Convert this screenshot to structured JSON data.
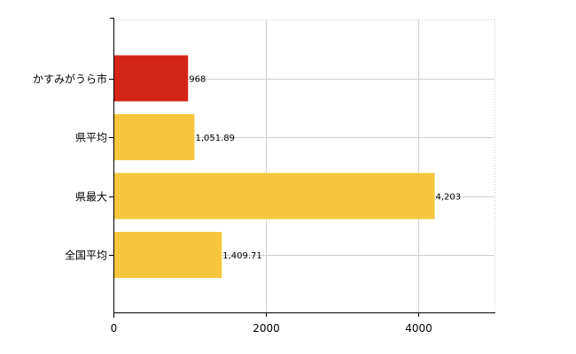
{
  "chart_data": {
    "type": "bar",
    "orientation": "horizontal",
    "categories": [
      "かすみがうら市",
      "県平均",
      "県最大",
      "全国平均"
    ],
    "values": [
      968,
      1051.89,
      4203,
      1409.71
    ],
    "value_labels": [
      "968",
      "1,051.89",
      "4,203",
      "1,409.71"
    ],
    "bar_colors": [
      "#d42416",
      "#f8c63c",
      "#f8c63c",
      "#f8c63c"
    ],
    "xlim": [
      0,
      5000
    ],
    "x_ticks": [
      0,
      2000,
      4000
    ],
    "x_tick_labels": [
      "0",
      "2000",
      "4000"
    ],
    "grid": true,
    "legend": "none"
  },
  "colors": {
    "highlight": "#d42416",
    "default_bar": "#f8c63c",
    "grid": "#cfcfcf",
    "axis": "#000000"
  }
}
